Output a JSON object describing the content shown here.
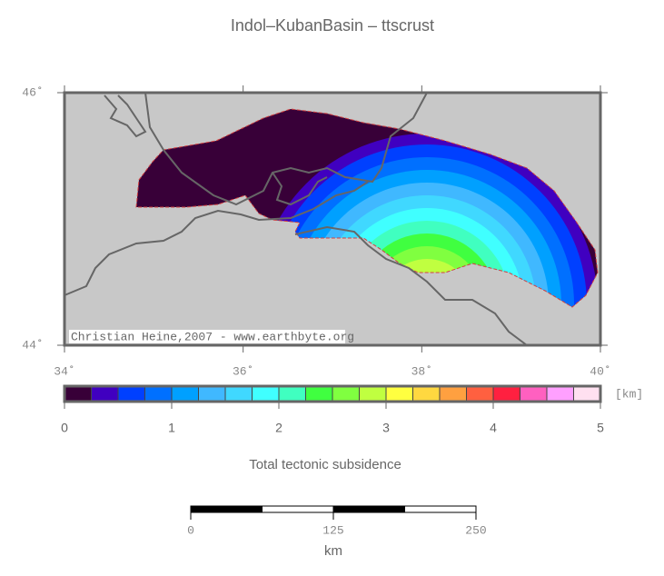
{
  "chart_data": {
    "type": "map",
    "title": "Indol–KubanBasin – ttscrust",
    "credit": "Christian Heine,2007 - www.earthbyte.org",
    "xlim": [
      34,
      40
    ],
    "ylim": [
      44,
      46
    ],
    "xticks": [
      {
        "value": 34,
        "label": "34˚"
      },
      {
        "value": 36,
        "label": "36˚"
      },
      {
        "value": 38,
        "label": "38˚"
      },
      {
        "value": 40,
        "label": "40˚"
      }
    ],
    "yticks": [
      {
        "value": 44,
        "label": "44˚"
      },
      {
        "value": 46,
        "label": "46˚"
      }
    ],
    "colorbar": {
      "label": "Total tectonic subsidence",
      "unit": "[km]",
      "lim": [
        0,
        5
      ],
      "ticks": [
        0,
        1,
        2,
        3,
        4,
        5
      ],
      "colors": [
        "#380038",
        "#4000c0",
        "#0040ff",
        "#0070ff",
        "#00a0ff",
        "#40b8ff",
        "#40d8ff",
        "#40ffff",
        "#40ffc0",
        "#40ff40",
        "#80ff40",
        "#c0ff40",
        "#ffff40",
        "#ffd840",
        "#ffa040",
        "#ff6040",
        "#ff2040",
        "#ff60c0",
        "#ffa0ff",
        "#ffe0f0"
      ]
    },
    "scale_bar": {
      "ticks": [
        0,
        125,
        250
      ],
      "unit": "km"
    }
  }
}
